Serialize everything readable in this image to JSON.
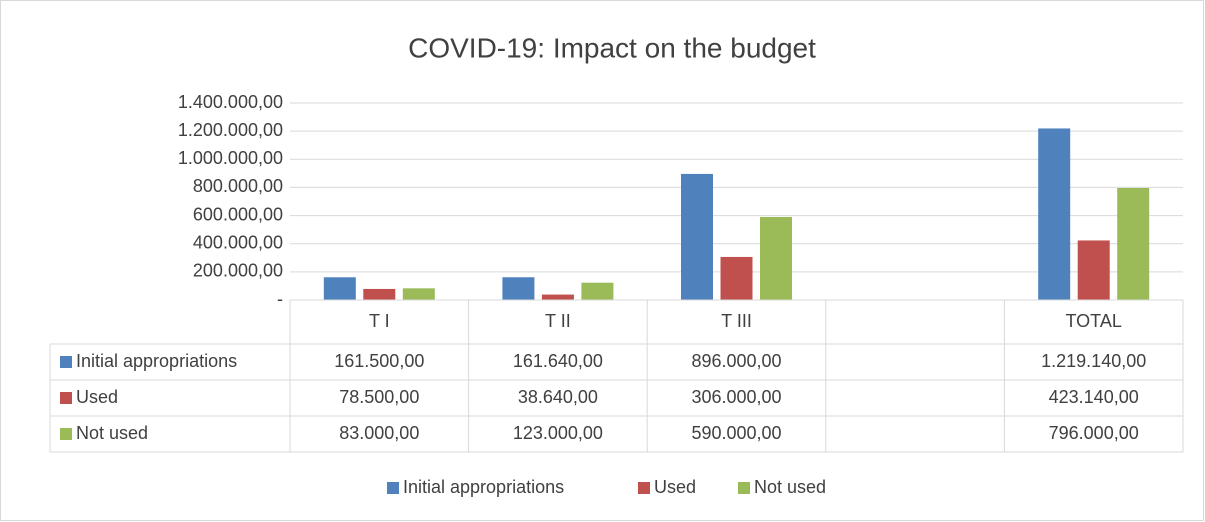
{
  "chart_data": {
    "type": "bar",
    "title": "COVID-19: Impact on the budget",
    "categories": [
      "T I",
      "T II",
      "T III",
      null,
      "TOTAL"
    ],
    "series": [
      {
        "name": "Initial appropriations",
        "color": "#4f81bd",
        "values": [
          161500,
          161640,
          896000,
          null,
          1219140
        ],
        "value_labels": [
          "161.500,00",
          "161.640,00",
          "896.000,00",
          null,
          "1.219.140,00"
        ]
      },
      {
        "name": "Used",
        "color": "#c0504d",
        "values": [
          78500,
          38640,
          306000,
          null,
          423140
        ],
        "value_labels": [
          "78.500,00",
          "38.640,00",
          "306.000,00",
          null,
          "423.140,00"
        ]
      },
      {
        "name": "Not used",
        "color": "#9bbb59",
        "values": [
          83000,
          123000,
          590000,
          null,
          796000
        ],
        "value_labels": [
          "83.000,00",
          "123.000,00",
          "590.000,00",
          null,
          "796.000,00"
        ]
      }
    ],
    "ylim": [
      0,
      1400000
    ],
    "yticks": [
      {
        "value": 0,
        "label": "-"
      },
      {
        "value": 200000,
        "label": "200.000,00"
      },
      {
        "value": 400000,
        "label": "400.000,00"
      },
      {
        "value": 600000,
        "label": "600.000,00"
      },
      {
        "value": 800000,
        "label": "800.000,00"
      },
      {
        "value": 1000000,
        "label": "1.000.000,00"
      },
      {
        "value": 1200000,
        "label": "1.200.000,00"
      },
      {
        "value": 1400000,
        "label": "1.400.000,00"
      }
    ],
    "grid": true,
    "legend": "bottom",
    "data_table": true
  }
}
